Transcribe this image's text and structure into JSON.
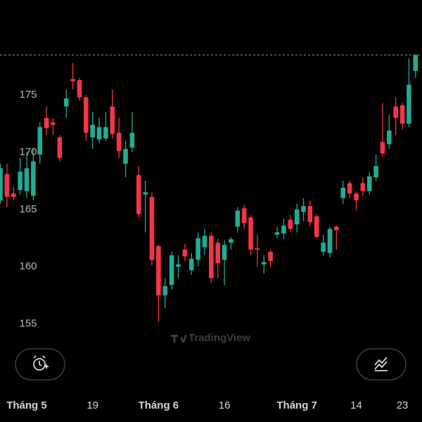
{
  "chart_data": {
    "type": "candlestick",
    "categories": [
      null,
      null,
      null,
      null,
      "Tháng 5",
      null,
      null,
      null,
      null,
      null,
      null,
      null,
      null,
      null,
      "19",
      null,
      null,
      null,
      null,
      null,
      null,
      null,
      null,
      null,
      "Tháng 6",
      null,
      null,
      null,
      null,
      null,
      null,
      null,
      null,
      null,
      "16",
      null,
      null,
      null,
      null,
      null,
      null,
      null,
      null,
      null,
      null,
      "Tháng 7",
      null,
      null,
      null,
      null,
      null,
      null,
      null,
      null,
      "14",
      null,
      null,
      null,
      null,
      null,
      null,
      "23",
      null,
      null
    ],
    "open": [
      165.8,
      168.1,
      166.4,
      166.7,
      166.6,
      166.2,
      169.8,
      173.0,
      172.6,
      171.3,
      174.0,
      176.4,
      176.3,
      174.8,
      171.3,
      171.1,
      171.2,
      174.0,
      171.7,
      169.0,
      170.4,
      168.0,
      166.3,
      166.1,
      161.8,
      157.5,
      158.4,
      160.0,
      161.5,
      159.7,
      160.6,
      161.7,
      162.7,
      162.1,
      160.6,
      162.1,
      163.5,
      165.1,
      164.3,
      161.6,
      160.2,
      161.3,
      162.8,
      162.9,
      164.1,
      163.7,
      164.8,
      165.3,
      164.4,
      161.3,
      161.2,
      163.5,
      166.0,
      167.3,
      166.4,
      167.3,
      166.6,
      167.8,
      170.9,
      170.7,
      174.0,
      174.1,
      172.5,
      177.1
    ],
    "high": [
      169.0,
      169.0,
      167.0,
      169.5,
      170.0,
      170.3,
      172.6,
      174.0,
      173.0,
      171.5,
      175.5,
      177.8,
      176.5,
      175.0,
      173.5,
      173.0,
      173.5,
      175.5,
      173.0,
      171.0,
      173.5,
      168.8,
      167.5,
      166.5,
      161.9,
      159.0,
      161.3,
      161.0,
      162.0,
      161.2,
      163.0,
      163.3,
      163.0,
      162.5,
      162.3,
      162.6,
      165.2,
      165.4,
      164.5,
      162.8,
      161.0,
      161.5,
      163.5,
      164.2,
      164.5,
      165.5,
      166.0,
      165.8,
      164.6,
      162.8,
      163.5,
      163.6,
      167.5,
      167.5,
      166.6,
      167.8,
      168.3,
      169.8,
      174.3,
      173.3,
      174.8,
      174.3,
      178.2,
      178.5
    ],
    "low": [
      165.5,
      165.2,
      165.8,
      166.3,
      166.0,
      165.8,
      169.0,
      171.5,
      171.5,
      169.2,
      173.0,
      175.5,
      174.5,
      171.0,
      170.3,
      170.8,
      171.0,
      171.2,
      169.5,
      167.8,
      170.0,
      164.3,
      163.0,
      160.1,
      155.2,
      156.4,
      158.0,
      159.0,
      160.5,
      159.3,
      160.0,
      161.0,
      158.6,
      159.0,
      158.4,
      161.5,
      163.0,
      163.3,
      161.0,
      160.0,
      159.4,
      160.0,
      162.5,
      162.4,
      163.0,
      163.0,
      164.0,
      163.5,
      162.5,
      161.0,
      160.8,
      161.5,
      165.5,
      166.0,
      164.9,
      166.2,
      166.3,
      167.5,
      169.6,
      170.3,
      171.5,
      172.0,
      172.2,
      176.5
    ],
    "close": [
      168.6,
      166.1,
      166.1,
      168.3,
      168.6,
      169.2,
      172.2,
      172.1,
      172.4,
      169.5,
      174.7,
      176.2,
      174.8,
      171.7,
      172.4,
      172.2,
      172.2,
      171.6,
      170.1,
      170.3,
      171.7,
      164.6,
      166.5,
      160.6,
      157.5,
      158.3,
      161.0,
      160.2,
      160.9,
      160.7,
      162.5,
      162.7,
      159.0,
      160.3,
      161.9,
      162.4,
      164.9,
      163.8,
      161.5,
      161.5,
      160.4,
      160.5,
      163.0,
      163.6,
      163.3,
      165.0,
      165.3,
      163.9,
      162.6,
      162.1,
      163.3,
      163.2,
      166.9,
      166.4,
      165.8,
      166.6,
      167.9,
      168.8,
      169.9,
      171.9,
      173.0,
      172.5,
      175.9,
      178.5
    ],
    "up_color": "#22ab94",
    "down_color": "#f23645",
    "price_line": 178.5,
    "ylim": [
      149.2,
      183.3
    ],
    "yticks": [
      155,
      160,
      165,
      170,
      175
    ],
    "watermark": "TradingView"
  }
}
